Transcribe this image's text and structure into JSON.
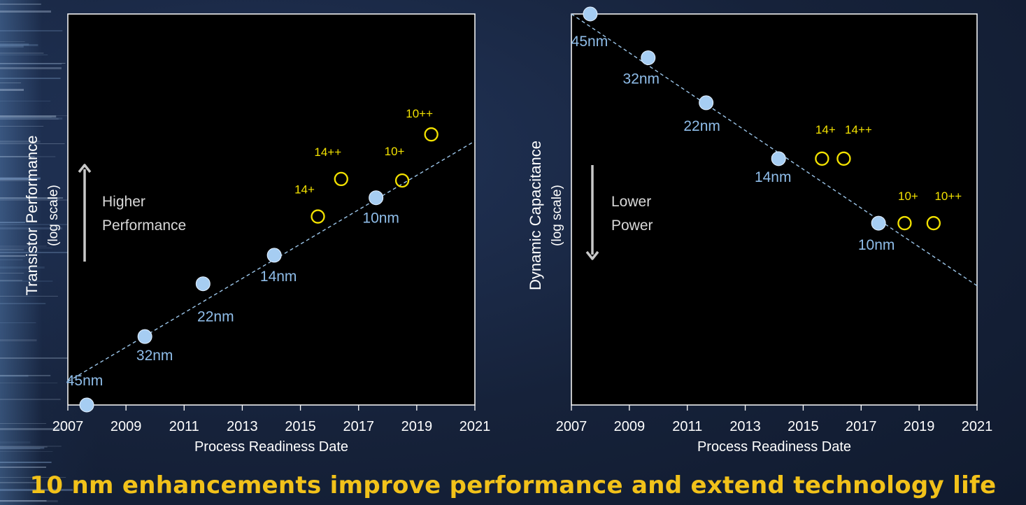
{
  "colors": {
    "node": "#a6cdf2",
    "node_label": "#8fbde9",
    "enhanced": "#f3e200",
    "trend": "#9cc6ea",
    "axis_text": "#ffffff",
    "footer": "#f2c21a"
  },
  "footer": {
    "title": "10 nm enhancements improve performance and extend technology life"
  },
  "chart_data": [
    {
      "type": "scatter",
      "name": "performance",
      "xlabel": "Process Readiness Date",
      "ylabel": "Transistor Performance",
      "ylabel_sub": "(log scale)",
      "xlim": [
        2007,
        2021
      ],
      "xticks": [
        "2007",
        "2009",
        "2011",
        "2013",
        "2015",
        "2017",
        "2019",
        "2021"
      ],
      "ylim": [
        0,
        100
      ],
      "annotation": {
        "lines": [
          "Higher",
          "Performance"
        ],
        "arrow": "up"
      },
      "trend": {
        "x": [
          2007,
          2021
        ],
        "y": [
          6,
          67.5
        ]
      },
      "nodes": [
        {
          "label": "45nm",
          "x": 2007.65,
          "y": 0
        },
        {
          "label": "32nm",
          "x": 2009.65,
          "y": 17.5
        },
        {
          "label": "22nm",
          "x": 2011.65,
          "y": 31
        },
        {
          "label": "14nm",
          "x": 2014.1,
          "y": 38.3
        },
        {
          "label": "10nm",
          "x": 2017.6,
          "y": 53
        }
      ],
      "enhanced": [
        {
          "label": "14+",
          "x": 2015.6,
          "y": 48.2
        },
        {
          "label": "14++",
          "x": 2016.4,
          "y": 57.8
        },
        {
          "label": "10+",
          "x": 2018.5,
          "y": 57.4
        },
        {
          "label": "10++",
          "x": 2019.5,
          "y": 69.2
        }
      ]
    },
    {
      "type": "scatter",
      "name": "capacitance",
      "xlabel": "Process Readiness Date",
      "ylabel": "Dynamic Capacitance",
      "ylabel_sub": "(log scale)",
      "xlim": [
        2007,
        2021
      ],
      "xticks": [
        "2007",
        "2009",
        "2011",
        "2013",
        "2015",
        "2017",
        "2019",
        "2021"
      ],
      "ylim": [
        0,
        100
      ],
      "annotation": {
        "lines": [
          "Lower",
          "Power"
        ],
        "arrow": "down"
      },
      "trend": {
        "x": [
          2007,
          2021
        ],
        "y": [
          100,
          30.5
        ]
      },
      "nodes": [
        {
          "label": "45nm",
          "x": 2007.65,
          "y": 100
        },
        {
          "label": "32nm",
          "x": 2009.65,
          "y": 88.8
        },
        {
          "label": "22nm",
          "x": 2011.65,
          "y": 77.3
        },
        {
          "label": "14nm",
          "x": 2014.15,
          "y": 63
        },
        {
          "label": "10nm",
          "x": 2017.6,
          "y": 46.5
        }
      ],
      "enhanced": [
        {
          "label": "14+",
          "x": 2015.65,
          "y": 63
        },
        {
          "label": "14++",
          "x": 2016.4,
          "y": 63
        },
        {
          "label": "10+",
          "x": 2018.5,
          "y": 46.5
        },
        {
          "label": "10++",
          "x": 2019.5,
          "y": 46.5
        }
      ]
    }
  ]
}
